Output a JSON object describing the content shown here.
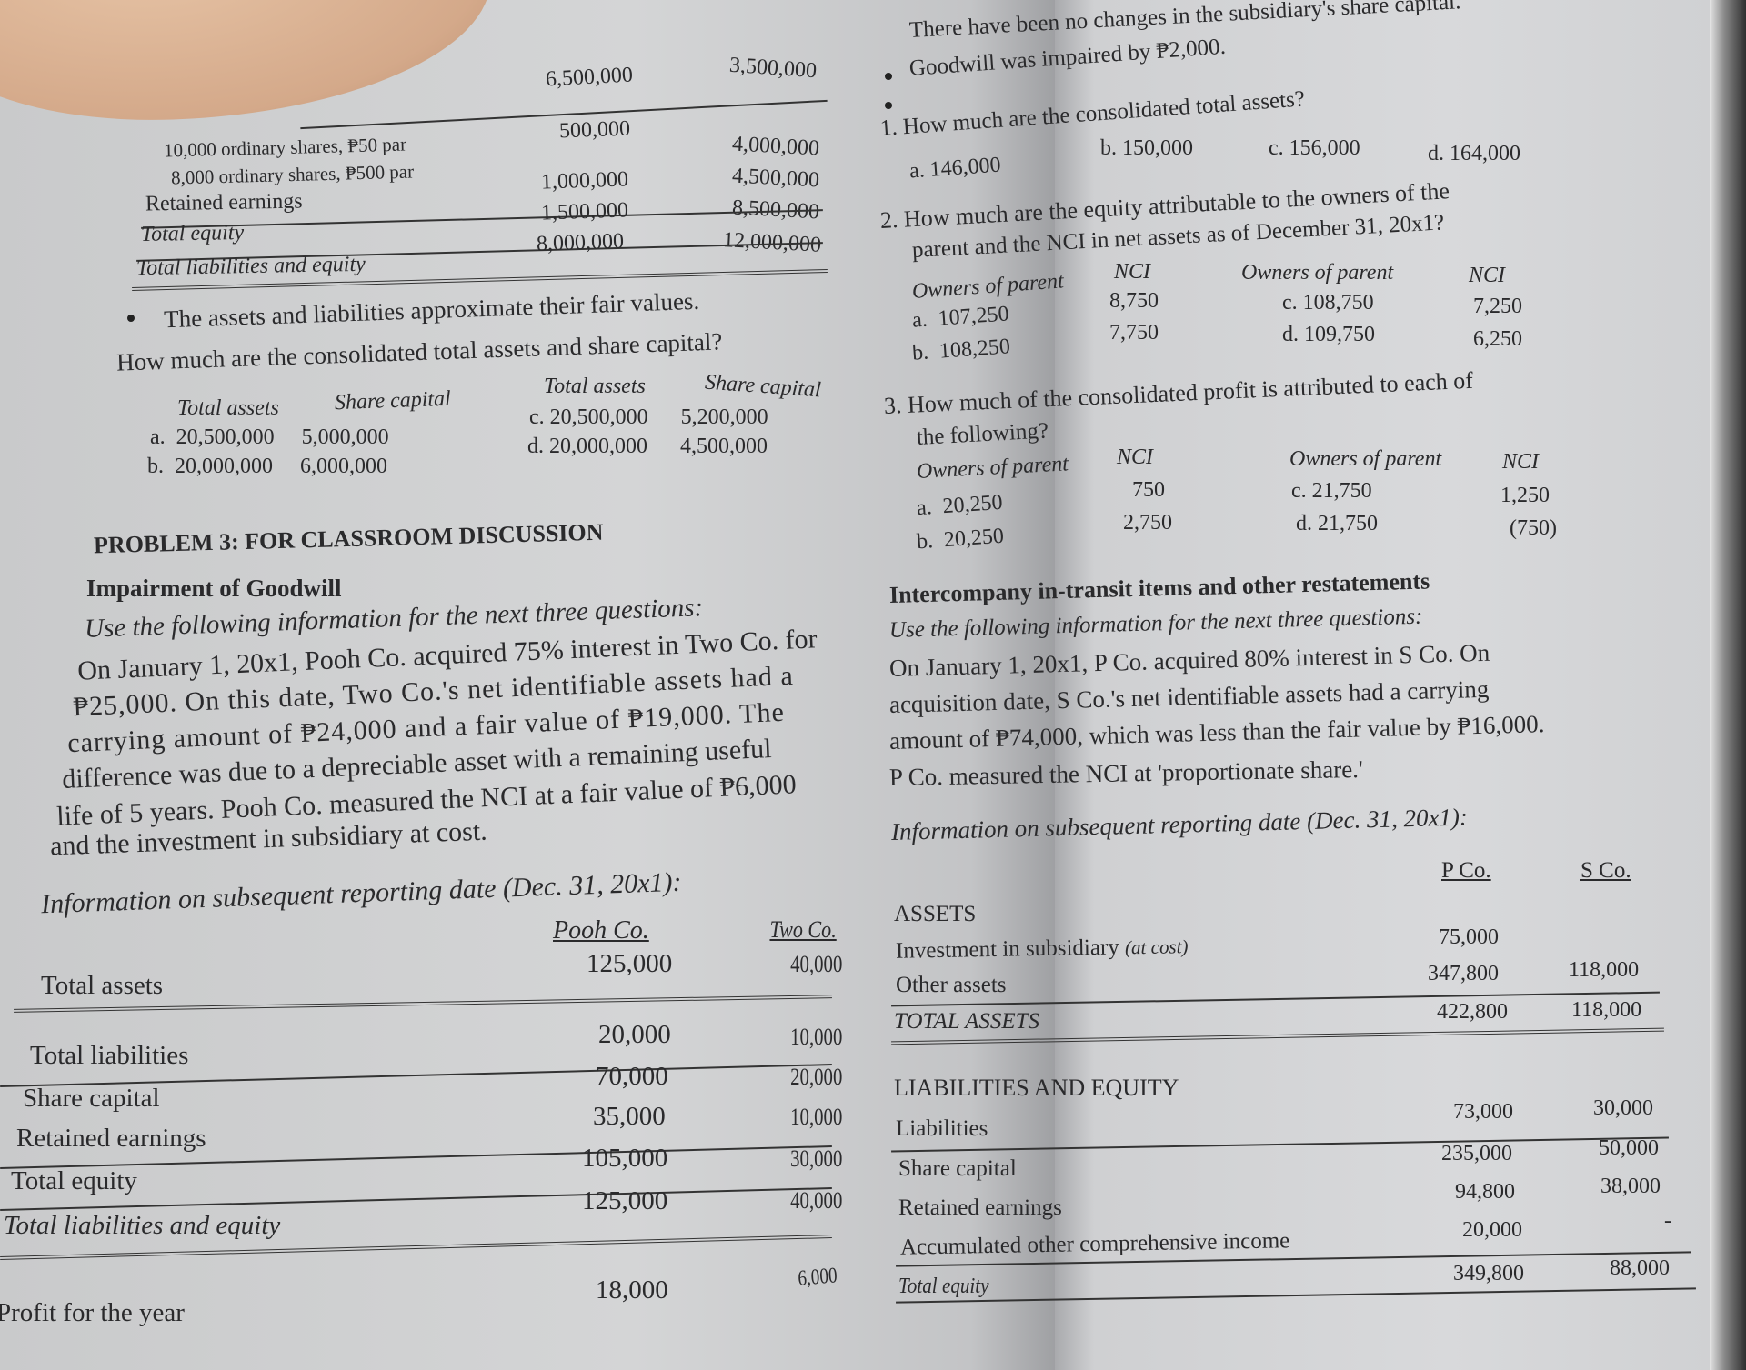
{
  "left_page": {
    "top_table": {
      "rows": [
        {
          "label": "",
          "pooh": "6,500,000",
          "two": "3,500,000"
        },
        {
          "label": "10,000 ordinary shares, ₱50 par",
          "pooh": "500,000",
          "two": ""
        },
        {
          "label": "8,000 ordinary shares, ₱500 par",
          "pooh": "",
          "two": "4,000,000"
        },
        {
          "label": "",
          "pooh": "",
          "two": "4,500,000"
        },
        {
          "label": "Retained earnings",
          "pooh": "1,000,000",
          "two": "8,500,000"
        },
        {
          "label": "Total equity",
          "pooh": "1,500,000",
          "two": "12,000,000"
        },
        {
          "label": "Total liabilities and equity",
          "pooh": "8,000,000",
          "two": ""
        }
      ]
    },
    "bullet": "The assets and liabilities approximate their fair values.",
    "question": {
      "text": "How much are the consolidated total assets and share capital?",
      "headers": [
        "Total assets",
        "Share capital",
        "Total assets",
        "Share capital"
      ],
      "options": [
        {
          "letter": "a.",
          "total_assets": "20,500,000",
          "share_capital": "5,000,000"
        },
        {
          "letter": "b.",
          "total_assets": "20,000,000",
          "share_capital": "6,000,000"
        },
        {
          "letter": "c.",
          "total_assets": "20,500,000",
          "share_capital": "5,200,000"
        },
        {
          "letter": "d.",
          "total_assets": "20,000,000",
          "share_capital": "4,500,000"
        }
      ]
    },
    "problem_title": "PROBLEM 3: FOR CLASSROOM DISCUSSION",
    "subtitle": "Impairment of Goodwill",
    "paragraph": [
      "Use the following information for the next three questions:",
      "On January 1, 20x1, Pooh Co. acquired 75% interest in Two Co. for",
      "₱25,000. On this date, Two Co.'s net identifiable assets had a",
      "carrying amount of ₱24,000 and a fair value of ₱19,000. The",
      "difference was due to a depreciable asset with a remaining useful",
      "life of 5 years. Pooh Co. measured the NCI at a fair value of ₱6,000",
      "and the investment in subsidiary at cost."
    ],
    "info_heading": "Information on subsequent reporting date (Dec. 31, 20x1):",
    "table": {
      "headers": [
        "Pooh Co.",
        "Two Co."
      ],
      "rows": [
        {
          "label": "Total assets",
          "pooh": "125,000",
          "two": "40,000"
        },
        {
          "label": "Total liabilities",
          "pooh": "20,000",
          "two": "10,000"
        },
        {
          "label": "Share capital",
          "pooh": "70,000",
          "two": "20,000"
        },
        {
          "label": "Retained earnings",
          "pooh": "35,000",
          "two": "10,000"
        },
        {
          "label": "Total equity",
          "pooh": "105,000",
          "two": "30,000"
        },
        {
          "label": "Total liabilities and equity",
          "pooh": "125,000",
          "two": "40,000"
        },
        {
          "label": "Profit for the year",
          "pooh": "18,000",
          "two": "6,000"
        }
      ]
    }
  },
  "right_page": {
    "bullets": [
      "There have been no changes in the subsidiary's share capital.",
      "Goodwill was impaired by ₱2,000."
    ],
    "q1": {
      "text": "1.  How much are the consolidated total assets?",
      "options": [
        "a.  146,000",
        "b. 150,000",
        "c. 156,000",
        "d. 164,000"
      ]
    },
    "q2": {
      "lines": [
        "2.  How much are the equity attributable to the owners of the",
        "parent and the NCI in net assets as of December 31, 20x1?"
      ],
      "headers": [
        "Owners of parent",
        "NCI",
        "Owners of parent",
        "NCI"
      ],
      "options": [
        {
          "letter": "a.",
          "parent": "107,250",
          "nci": "8,750"
        },
        {
          "letter": "b.",
          "parent": "108,250",
          "nci": "7,750"
        },
        {
          "letter": "c.",
          "parent": "108,750",
          "nci": "7,250"
        },
        {
          "letter": "d.",
          "parent": "109,750",
          "nci": "6,250"
        }
      ]
    },
    "q3": {
      "lines": [
        "3.  How much of the consolidated profit is attributed to each of",
        "the following?"
      ],
      "headers": [
        "Owners of parent",
        "NCI",
        "Owners of parent",
        "NCI"
      ],
      "options": [
        {
          "letter": "a.",
          "parent": "20,250",
          "nci": "750"
        },
        {
          "letter": "b.",
          "parent": "20,250",
          "nci": "2,750"
        },
        {
          "letter": "c.",
          "parent": "21,750",
          "nci": "1,250"
        },
        {
          "letter": "d.",
          "parent": "21,750",
          "nci": "(750)"
        }
      ]
    },
    "section_title": "Intercompany in-transit items and other restatements",
    "paragraph": [
      "Use the following information for the next three questions:",
      "On January 1, 20x1, P Co. acquired 80% interest in S Co. On",
      "acquisition date, S Co.'s net identifiable assets had a carrying",
      "amount of ₱74,000, which was less than the fair value by ₱16,000.",
      "P Co. measured the NCI at 'proportionate share.'"
    ],
    "info_heading": "Information on subsequent reporting date (Dec. 31, 20x1):",
    "table": {
      "headers": [
        "P Co.",
        "S Co."
      ],
      "assets_heading": "ASSETS",
      "assets": [
        {
          "label": "Investment in subsidiary",
          "note": "(at cost)",
          "p": "75,000",
          "s": ""
        },
        {
          "label": "Other assets",
          "note": "",
          "p": "347,800",
          "s": "118,000"
        },
        {
          "label": "TOTAL ASSETS",
          "note": "",
          "p": "422,800",
          "s": "118,000"
        }
      ],
      "le_heading": "LIABILITIES AND EQUITY",
      "le": [
        {
          "label": "Liabilities",
          "p": "73,000",
          "s": "30,000"
        },
        {
          "label": "Share capital",
          "p": "235,000",
          "s": "50,000"
        },
        {
          "label": "Retained earnings",
          "p": "94,800",
          "s": "38,000"
        },
        {
          "label": "Accumulated other comprehensive income",
          "p": "20,000",
          "s": "-"
        },
        {
          "label": "Total equity",
          "p": "349,800",
          "s": "88,000"
        }
      ]
    }
  }
}
